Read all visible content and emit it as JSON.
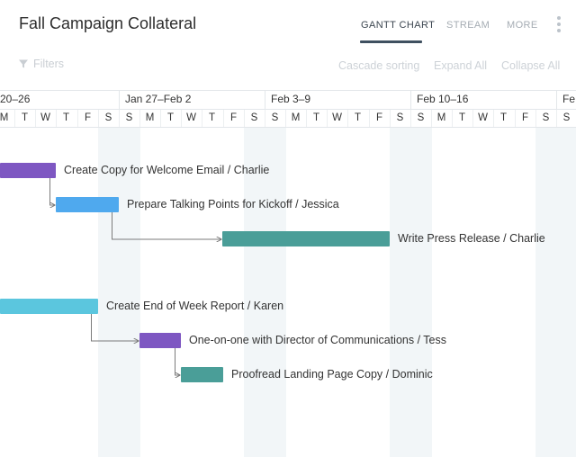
{
  "header": {
    "title": "Fall Campaign Collateral",
    "tabs": [
      {
        "label": "GANTT CHART",
        "active": true
      },
      {
        "label": "STREAM",
        "active": false
      },
      {
        "label": "MORE",
        "active": false
      }
    ],
    "menu_icon": "more-vertical-icon"
  },
  "toolbar": {
    "filters_label": "Filters",
    "filter_icon": "funnel-icon",
    "cascade_label": "Cascade sorting",
    "expand_label": "Expand All",
    "collapse_label": "Collapse All"
  },
  "timeline": {
    "weeks": [
      "20–26",
      "Jan 27–Feb 2",
      "Feb 3–9",
      "Feb 10–16",
      "Fe"
    ],
    "days": [
      "M",
      "T",
      "W",
      "T",
      "F",
      "S",
      "S",
      "M",
      "T",
      "W",
      "T",
      "F",
      "S",
      "S",
      "M",
      "T",
      "W",
      "T",
      "F",
      "S",
      "S",
      "M",
      "T",
      "W",
      "T",
      "F",
      "S",
      "S"
    ]
  },
  "tasks": [
    {
      "label": "Create Copy for Welcome Email / Charlie",
      "color": "#7e57c2"
    },
    {
      "label": "Prepare Talking Points for Kickoff / Jessica",
      "color": "#4fa9ee"
    },
    {
      "label": "Write Press Release / Charlie",
      "color": "#4a9e98"
    },
    {
      "label": "Create End of Week Report / Karen",
      "color": "#5bc6de"
    },
    {
      "label": "One-on-one with Director of Communications / Tess",
      "color": "#7e57c2"
    },
    {
      "label": "Proofread Landing Page Copy / Dominic",
      "color": "#4a9e98"
    }
  ],
  "colors": {
    "weekend_shade": "#f2f6f8",
    "dependency_line": "#7b7b7b",
    "active_tab_underline": "#3f5060"
  }
}
